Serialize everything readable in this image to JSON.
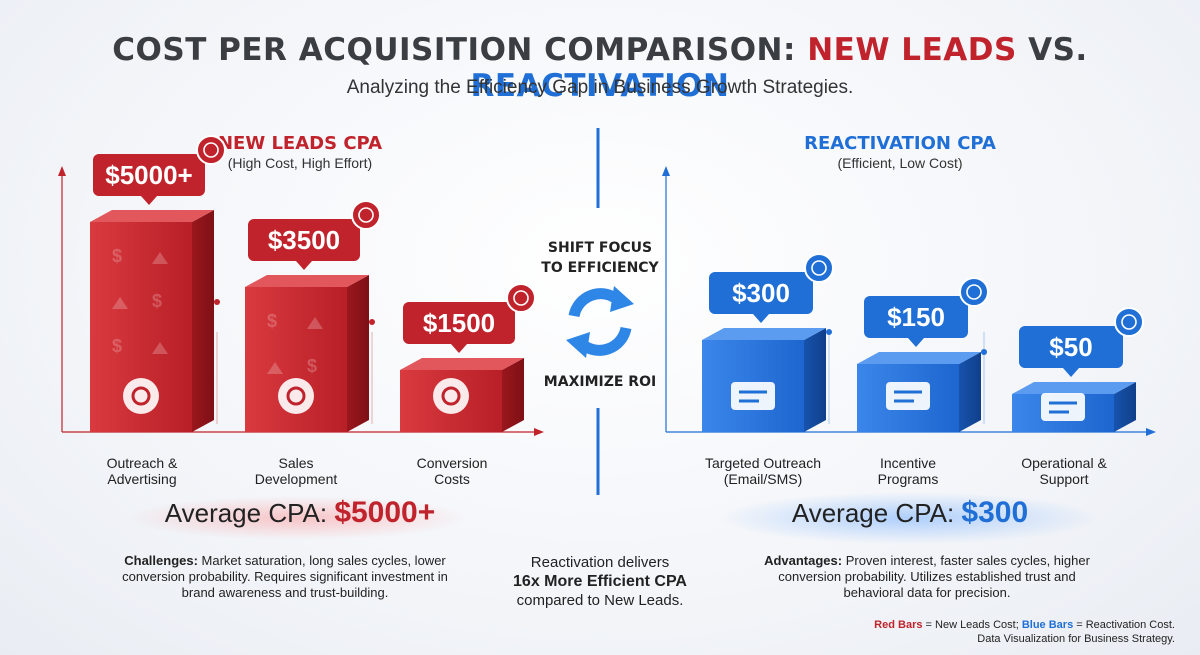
{
  "title": {
    "prefix": "COST PER ACQUISITION COMPARISON: ",
    "red_part": "NEW LEADS",
    "middle": " VS. ",
    "blue_part": "REACTIVATION"
  },
  "subtitle": "Analyzing the Efficiency Gap in Business Growth Strategies.",
  "colors": {
    "red": "#c0232b",
    "blue": "#1f6fd6",
    "dark": "#3a3d42"
  },
  "chart_data": [
    {
      "type": "bar",
      "title": "NEW LEADS CPA",
      "subtitle": "(High Cost, High Effort)",
      "categories": [
        "Outreach & Advertising",
        "Sales Development",
        "Conversion Costs"
      ],
      "category_lines": [
        [
          "Outreach &",
          "Advertising"
        ],
        [
          "Sales",
          "Development"
        ],
        [
          "Conversion",
          "Costs"
        ]
      ],
      "values": [
        5000,
        3500,
        1500
      ],
      "value_labels": [
        "$5000+",
        "$3500",
        "$1500"
      ],
      "icons": [
        "magnet-people-icon",
        "funnel-megaphone-icon",
        "handshake-contract-icon"
      ],
      "badge_icons": [
        "dollar-badge-icon",
        "hand-dollar-badge-icon",
        "document-badge-icon"
      ],
      "color": "#c0232b",
      "ylim": [
        0,
        5500
      ]
    },
    {
      "type": "bar",
      "title": "REACTIVATION CPA",
      "subtitle": "(Efficient, Low Cost)",
      "categories": [
        "Targeted Outreach (Email/SMS)",
        "Incentive Programs",
        "Operational & Support"
      ],
      "category_lines": [
        [
          "Targeted Outreach",
          "(Email/SMS)"
        ],
        [
          "Incentive",
          "Programs"
        ],
        [
          "Operational &",
          "Support"
        ]
      ],
      "values": [
        300,
        150,
        50
      ],
      "value_labels": [
        "$300",
        "$150",
        "$50"
      ],
      "icons": [
        "email-phone-icon",
        "credit-card-coupon-icon",
        "headset-chat-icon"
      ],
      "badge_icons": [
        "dollar-badge-icon",
        "refresh-badge-icon",
        "headset-badge-icon"
      ],
      "color": "#1f6fd6",
      "ylim": [
        0,
        330
      ]
    }
  ],
  "left_panel": {
    "avg_label": "Average CPA: ",
    "avg_value": "$5000+",
    "note_title": "Challenges:",
    "note_text": " Market saturation, long sales cycles, lower conversion probability. Requires significant investment in brand awareness and trust-building."
  },
  "right_panel": {
    "avg_label": "Average CPA: ",
    "avg_value": "$300",
    "note_title": "Advantages:",
    "note_text": " Proven interest, faster sales cycles, higher conversion probability. Utilizes established trust and behavioral data for precision."
  },
  "center": {
    "top_line1": "SHIFT FOCUS",
    "top_line2": "TO EFFICIENCY",
    "bottom_line": "MAXIMIZE ROI",
    "icon": "refresh-arrows-icon",
    "note_line1": "Reactivation delivers",
    "note_bold": "16x More Efficient CPA",
    "note_line3": "compared to New Leads."
  },
  "footer": {
    "red_label": "Red Bars",
    "red_text": " = New Leads Cost; ",
    "blue_label": "Blue Bars",
    "blue_text": " = Reactivation Cost.",
    "line2": "Data Visualization for Business Strategy."
  }
}
